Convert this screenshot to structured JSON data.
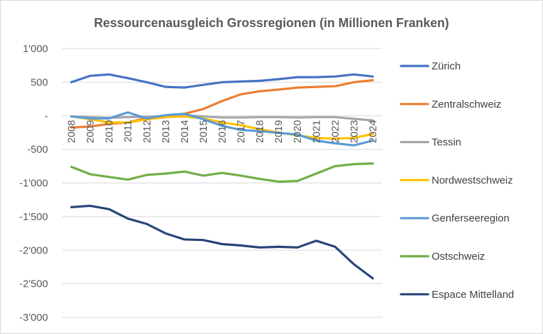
{
  "chart_data": {
    "type": "line",
    "title": "Ressourcenausgleich Grossregionen (in Millionen Franken)",
    "xlabel": "",
    "ylabel": "",
    "ylim": [
      -3000,
      1000
    ],
    "y_ticks": [
      1000,
      500,
      0,
      -500,
      -1000,
      -1500,
      -2000,
      -2500,
      -3000
    ],
    "y_tick_labels": [
      "1'000",
      "500",
      "-",
      "-500",
      "-1'000",
      "-1'500",
      "-2'000",
      "-2'500",
      "-3'000"
    ],
    "grid": true,
    "legend_position": "right",
    "categories": [
      "2008",
      "2009",
      "2010",
      "2011",
      "2012",
      "2013",
      "2014",
      "2015",
      "2016",
      "2017",
      "2018",
      "2019",
      "2020",
      "2021",
      "2022",
      "2023",
      "2024"
    ],
    "series": [
      {
        "name": "Zürich",
        "color": "#4472C4",
        "values": [
          500,
          595,
          615,
          560,
          500,
          430,
          420,
          460,
          500,
          510,
          520,
          545,
          575,
          575,
          585,
          615,
          585
        ]
      },
      {
        "name": "Zentralschweiz",
        "color": "#ED7D31",
        "values": [
          -175,
          -160,
          -120,
          -100,
          -30,
          0,
          30,
          100,
          220,
          320,
          365,
          390,
          420,
          430,
          440,
          500,
          530
        ]
      },
      {
        "name": "Tessin",
        "color": "#A5A5A5",
        "values": [
          -10,
          -20,
          -30,
          -20,
          -15,
          0,
          10,
          -10,
          -25,
          -25,
          -20,
          -20,
          -25,
          -20,
          -20,
          -45,
          -70
        ]
      },
      {
        "name": "Nordwestschweiz",
        "color": "#FFC000",
        "values": [
          -10,
          -50,
          -100,
          -100,
          -55,
          -20,
          -10,
          -40,
          -100,
          -140,
          -200,
          -250,
          -290,
          -330,
          -340,
          -330,
          -270
        ]
      },
      {
        "name": "Genferseeregion",
        "color": "#5B9BD5",
        "values": [
          -10,
          -40,
          -40,
          50,
          -40,
          10,
          30,
          -50,
          -150,
          -210,
          -230,
          -255,
          -280,
          -370,
          -410,
          -440,
          -370
        ]
      },
      {
        "name": "Ostschweiz",
        "color": "#70AD47",
        "values": [
          -760,
          -870,
          -910,
          -950,
          -880,
          -860,
          -830,
          -890,
          -850,
          -890,
          -940,
          -980,
          -970,
          -860,
          -750,
          -720,
          -710
        ]
      },
      {
        "name": "Espace Mittelland",
        "color": "#264478",
        "values": [
          -1360,
          -1340,
          -1390,
          -1530,
          -1610,
          -1750,
          -1840,
          -1850,
          -1910,
          -1930,
          -1960,
          -1950,
          -1960,
          -1860,
          -1950,
          -2210,
          -2420
        ]
      }
    ]
  }
}
